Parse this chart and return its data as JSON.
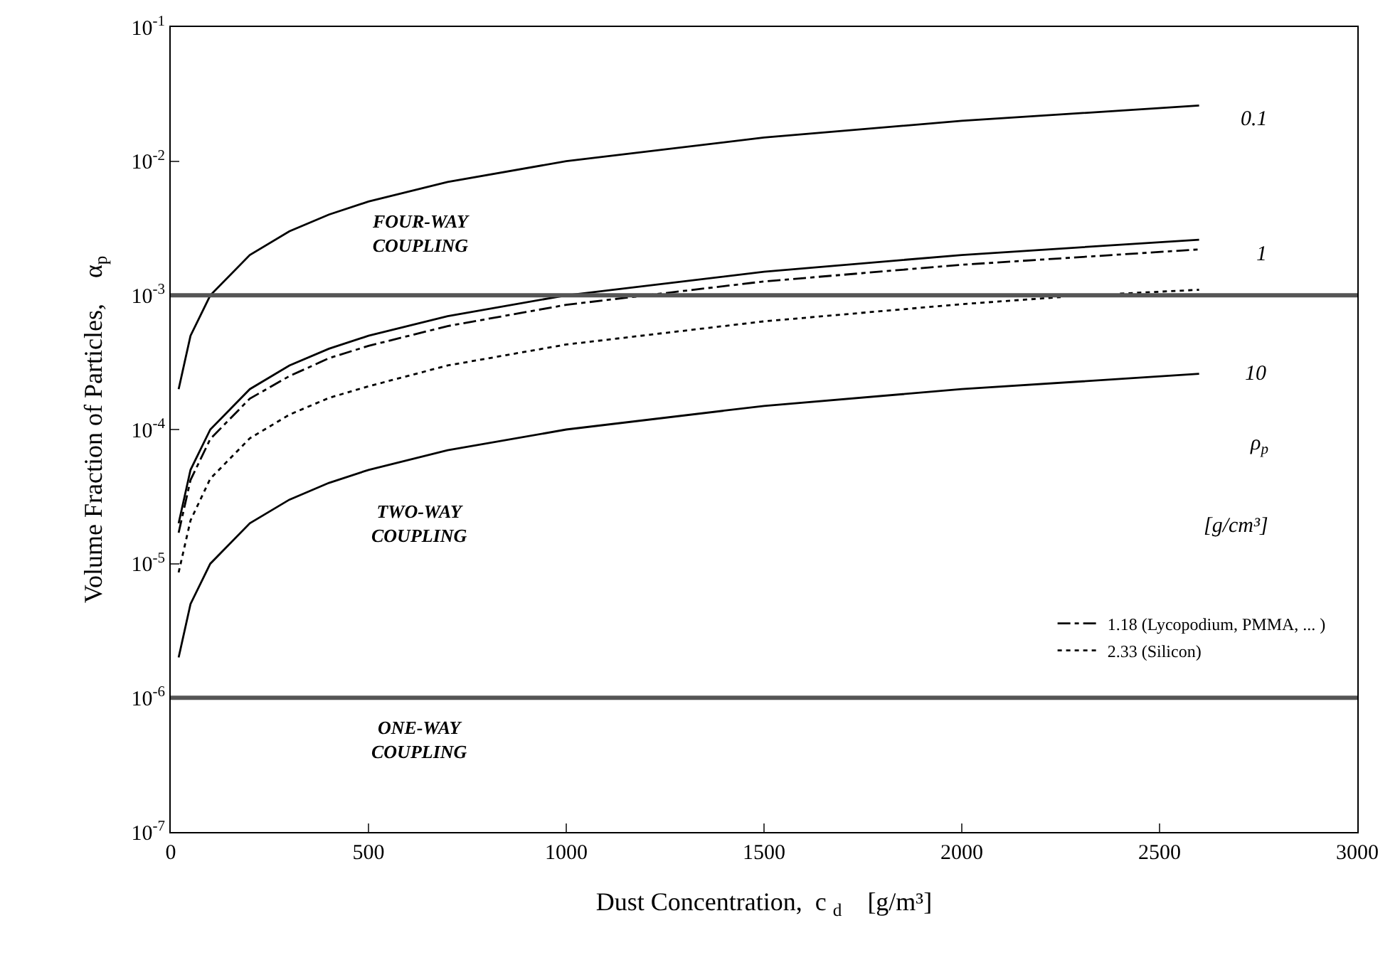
{
  "chart_data": {
    "type": "line",
    "xlabel": "Dust Concentration,  c $_{d}$    [g/m³]",
    "ylabel": "Volume Fraction of Particles,    α$_{p}$",
    "xlim": [
      0,
      3000
    ],
    "xticks": [
      0,
      500,
      1000,
      1500,
      2000,
      2500,
      3000
    ],
    "ylim": [
      1e-07,
      0.1
    ],
    "yticks": [
      {
        "value": 1e-07,
        "label": "10$^{-7}$"
      },
      {
        "value": 1e-06,
        "label": "10$^{-6}$"
      },
      {
        "value": 1e-05,
        "label": "10$^{-5}$"
      },
      {
        "value": 0.0001,
        "label": "10$^{-4}$"
      },
      {
        "value": 0.001,
        "label": "10$^{-3}$"
      },
      {
        "value": 0.01,
        "label": "10$^{-2}$"
      },
      {
        "value": 0.1,
        "label": "10$^{-1}$"
      }
    ],
    "log": "y",
    "legend": "bottom right",
    "marker": "none",
    "series": [
      {
        "color": "#000000",
        "line_style": "solid",
        "x": [
          20,
          50,
          100,
          200,
          300,
          400,
          500,
          700,
          1000,
          1500,
          2000,
          2600
        ],
        "values": [
          0.0002,
          0.0005,
          0.001,
          0.002,
          0.003,
          0.004,
          0.005,
          0.007,
          0.01,
          0.015,
          0.02,
          0.026
        ]
      },
      {
        "color": "#000000",
        "line_style": "solid",
        "x": [
          20,
          50,
          100,
          200,
          300,
          400,
          500,
          700,
          1000,
          1500,
          2000,
          2600
        ],
        "values": [
          2e-05,
          5e-05,
          0.0001,
          0.0002,
          0.0003,
          0.0004,
          0.0005,
          0.0007,
          0.001,
          0.0015,
          0.002,
          0.0026
        ]
      },
      {
        "color": "#000000",
        "line_style": "solid",
        "x": [
          20,
          50,
          100,
          200,
          300,
          400,
          500,
          700,
          1000,
          1500,
          2000,
          2600
        ],
        "values": [
          2e-06,
          5e-06,
          1e-05,
          2e-05,
          3e-05,
          4e-05,
          5e-05,
          7e-05,
          0.0001,
          0.00015,
          0.0002,
          0.00026
        ]
      },
      {
        "name": "1.18 (Lycopodium, PMMA, ... )",
        "color": "#000000",
        "line_style": "dashdot",
        "x": [
          20,
          50,
          100,
          200,
          300,
          400,
          500,
          700,
          1000,
          1500,
          2000,
          2600
        ],
        "values": [
          1.7e-05,
          4.2e-05,
          8.5e-05,
          0.00017,
          0.00025,
          0.00034,
          0.00042,
          0.00059,
          0.00085,
          0.00127,
          0.00169,
          0.0022
        ]
      },
      {
        "name": "2.33 (Silicon)",
        "color": "#000000",
        "line_style": "dotted",
        "x": [
          20,
          50,
          100,
          200,
          300,
          400,
          500,
          700,
          1000,
          1500,
          2000,
          2250,
          2300,
          2400,
          2600
        ],
        "values": [
          8.6e-06,
          2.1e-05,
          4.3e-05,
          8.6e-05,
          0.000129,
          0.000172,
          0.00021,
          0.0003,
          0.00043,
          0.00064,
          0.00086,
          0.00097,
          null,
          0.00103,
          0.0011
        ]
      }
    ],
    "ref_lines": [
      {
        "axis": "y",
        "value": 0.001,
        "color": "#555555"
      },
      {
        "axis": "y",
        "value": 1e-06,
        "color": "#555555"
      }
    ],
    "annotations": [
      "FOUR-WAY\nCOUPLING",
      "TWO-WAY\nCOUPLING",
      "ONE-WAY\nCOUPLING",
      "0.1",
      "1",
      "10",
      "ρ$_{p}$",
      "[g/cm³]"
    ]
  }
}
